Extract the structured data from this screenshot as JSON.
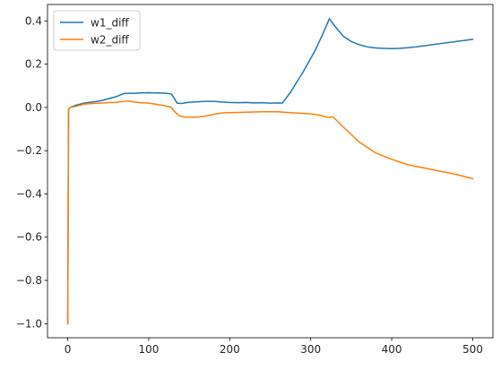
{
  "chart_data": {
    "type": "line",
    "title": "",
    "xlabel": "",
    "ylabel": "",
    "xlim": [
      -25,
      525
    ],
    "ylim": [
      -1.065,
      0.476
    ],
    "x_ticks": [
      0,
      100,
      200,
      300,
      400,
      500
    ],
    "y_ticks": [
      -1.0,
      -0.8,
      -0.6,
      -0.4,
      -0.2,
      0.0,
      0.2,
      0.4
    ],
    "x_tick_labels": [
      "0",
      "100",
      "200",
      "300",
      "400",
      "500"
    ],
    "y_tick_labels": [
      "−1.0",
      "−0.8",
      "−0.6",
      "−0.4",
      "−0.2",
      "0.0",
      "0.2",
      "0.4"
    ],
    "grid": false,
    "legend_position": "top-left",
    "series": [
      {
        "name": "w1_diff",
        "color": "#1f77b4",
        "points": [
          [
            0,
            -1.0
          ],
          [
            1,
            -0.01
          ],
          [
            3,
            0.0
          ],
          [
            10,
            0.01
          ],
          [
            20,
            0.02
          ],
          [
            30,
            0.025
          ],
          [
            40,
            0.03
          ],
          [
            50,
            0.04
          ],
          [
            60,
            0.05
          ],
          [
            70,
            0.065
          ],
          [
            80,
            0.065
          ],
          [
            90,
            0.067
          ],
          [
            100,
            0.068
          ],
          [
            110,
            0.067
          ],
          [
            120,
            0.066
          ],
          [
            128,
            0.062
          ],
          [
            131,
            0.045
          ],
          [
            135,
            0.02
          ],
          [
            140,
            0.018
          ],
          [
            150,
            0.024
          ],
          [
            160,
            0.026
          ],
          [
            170,
            0.028
          ],
          [
            180,
            0.028
          ],
          [
            190,
            0.025
          ],
          [
            200,
            0.023
          ],
          [
            210,
            0.022
          ],
          [
            220,
            0.023
          ],
          [
            230,
            0.021
          ],
          [
            240,
            0.022
          ],
          [
            250,
            0.02
          ],
          [
            260,
            0.021
          ],
          [
            265,
            0.02
          ],
          [
            275,
            0.07
          ],
          [
            290,
            0.16
          ],
          [
            305,
            0.26
          ],
          [
            315,
            0.34
          ],
          [
            323,
            0.41
          ],
          [
            330,
            0.375
          ],
          [
            340,
            0.33
          ],
          [
            350,
            0.305
          ],
          [
            360,
            0.29
          ],
          [
            370,
            0.28
          ],
          [
            380,
            0.275
          ],
          [
            390,
            0.273
          ],
          [
            400,
            0.272
          ],
          [
            410,
            0.273
          ],
          [
            420,
            0.276
          ],
          [
            430,
            0.28
          ],
          [
            440,
            0.285
          ],
          [
            450,
            0.29
          ],
          [
            460,
            0.295
          ],
          [
            470,
            0.3
          ],
          [
            480,
            0.305
          ],
          [
            490,
            0.31
          ],
          [
            500,
            0.315
          ]
        ]
      },
      {
        "name": "w2_diff",
        "color": "#ff7f0e",
        "points": [
          [
            0,
            -1.0
          ],
          [
            1,
            -0.01
          ],
          [
            3,
            0.0
          ],
          [
            10,
            0.005
          ],
          [
            20,
            0.015
          ],
          [
            30,
            0.018
          ],
          [
            40,
            0.02
          ],
          [
            50,
            0.022
          ],
          [
            60,
            0.024
          ],
          [
            70,
            0.028
          ],
          [
            75,
            0.03
          ],
          [
            80,
            0.026
          ],
          [
            90,
            0.022
          ],
          [
            100,
            0.02
          ],
          [
            110,
            0.014
          ],
          [
            120,
            0.008
          ],
          [
            128,
            0.0
          ],
          [
            132,
            -0.02
          ],
          [
            138,
            -0.04
          ],
          [
            145,
            -0.045
          ],
          [
            160,
            -0.045
          ],
          [
            170,
            -0.04
          ],
          [
            180,
            -0.032
          ],
          [
            190,
            -0.026
          ],
          [
            200,
            -0.024
          ],
          [
            220,
            -0.022
          ],
          [
            240,
            -0.02
          ],
          [
            260,
            -0.02
          ],
          [
            266,
            -0.022
          ],
          [
            280,
            -0.025
          ],
          [
            300,
            -0.03
          ],
          [
            310,
            -0.035
          ],
          [
            320,
            -0.045
          ],
          [
            328,
            -0.045
          ],
          [
            340,
            -0.09
          ],
          [
            360,
            -0.16
          ],
          [
            380,
            -0.21
          ],
          [
            400,
            -0.24
          ],
          [
            420,
            -0.265
          ],
          [
            440,
            -0.28
          ],
          [
            460,
            -0.295
          ],
          [
            480,
            -0.31
          ],
          [
            500,
            -0.33
          ]
        ]
      }
    ]
  }
}
